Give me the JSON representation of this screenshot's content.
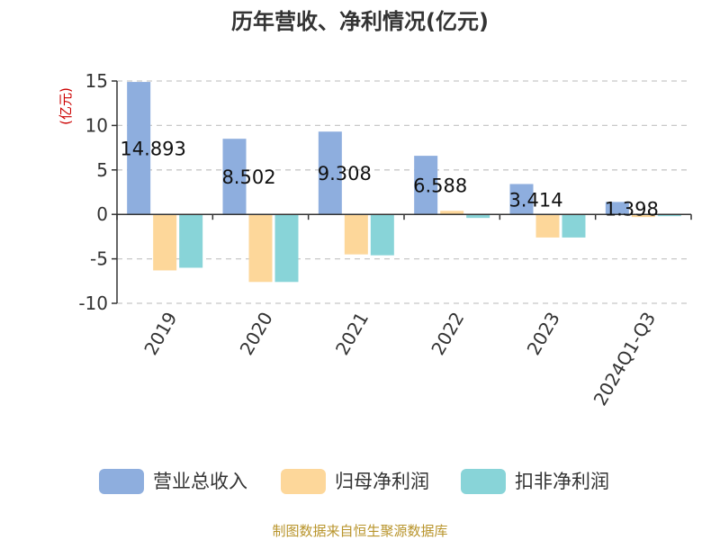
{
  "source": "制图数据来自恒生聚源数据库",
  "chart_data": {
    "type": "bar",
    "title": "历年营收、净利情况(亿元)",
    "ylabel": "(亿元)",
    "xlabel": "",
    "ylim": [
      -10,
      15
    ],
    "yticks": [
      -10,
      -5,
      0,
      5,
      10,
      15
    ],
    "grid": true,
    "legend_position": "bottom",
    "categories": [
      "2019",
      "2020",
      "2021",
      "2022",
      "2023",
      "2024Q1-Q3"
    ],
    "series": [
      {
        "name": "营业总收入",
        "color": "#8eaede",
        "values": [
          14.893,
          8.502,
          9.308,
          6.588,
          3.414,
          1.398
        ],
        "labels": [
          "14.893",
          "8.502",
          "9.308",
          "6.588",
          "3.414",
          "1.398"
        ]
      },
      {
        "name": "归母净利润",
        "color": "#fdd79a",
        "values": [
          -6.3,
          -7.6,
          -4.5,
          0.4,
          -2.6,
          -0.3
        ]
      },
      {
        "name": "扣非净利润",
        "color": "#88d4d8",
        "values": [
          -6.0,
          -7.6,
          -4.6,
          -0.4,
          -2.6,
          -0.2
        ]
      }
    ]
  }
}
